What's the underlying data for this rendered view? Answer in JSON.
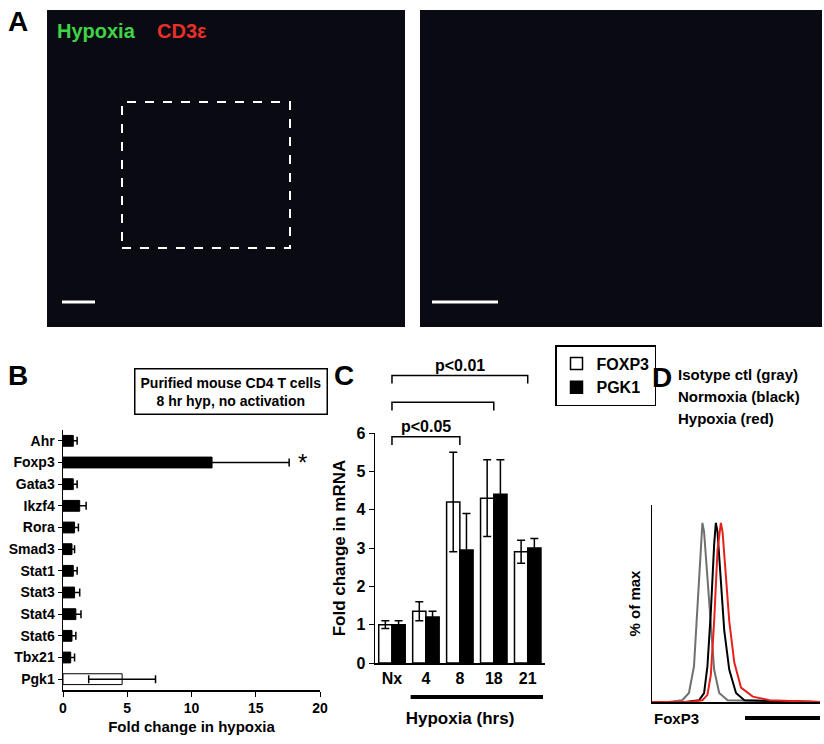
{
  "image_panel": {
    "panel": "A",
    "labels": [
      {
        "text": "Hypoxia",
        "color": "#3fd447"
      },
      {
        "text": "CD3ε",
        "color": "#e8302a"
      }
    ]
  },
  "chart_data": [
    {
      "panel": "B",
      "type": "bar",
      "orientation": "horizontal",
      "title": "Purified mouse CD4 T cells\n8 hr hyp, no activation",
      "categories": [
        "Ahr",
        "Foxp3",
        "Gata3",
        "Ikzf4",
        "Rora",
        "Smad3",
        "Stat1",
        "Stat3",
        "Stat4",
        "Stat6",
        "Tbx21",
        "Pgk1"
      ],
      "values": [
        0.8,
        11.6,
        0.8,
        1.3,
        0.9,
        0.7,
        0.8,
        0.9,
        1.0,
        0.7,
        0.6,
        4.6
      ],
      "errors": [
        0.3,
        6.0,
        0.3,
        0.5,
        0.3,
        0.2,
        0.3,
        0.4,
        0.4,
        0.3,
        0.3,
        2.6
      ],
      "colors": [
        "#000000",
        "#000000",
        "#000000",
        "#000000",
        "#000000",
        "#000000",
        "#000000",
        "#000000",
        "#000000",
        "#000000",
        "#000000",
        "#ffffff"
      ],
      "xlabel": "Fold change in hypoxia",
      "xlim": [
        0,
        20
      ],
      "xticks": [
        0,
        5,
        10,
        15,
        20
      ],
      "annotations": [
        {
          "text": "*",
          "x": 18.6,
          "y": "Foxp3"
        }
      ]
    },
    {
      "panel": "C",
      "type": "bar",
      "categories": [
        "Nx",
        "4",
        "8",
        "18",
        "21"
      ],
      "series": [
        {
          "name": "FOXP3",
          "color": "#ffffff",
          "values": [
            1.0,
            1.35,
            4.2,
            4.3,
            2.9
          ],
          "errors": [
            0.1,
            0.25,
            1.3,
            1.0,
            0.3
          ]
        },
        {
          "name": "PGK1",
          "color": "#000000",
          "values": [
            1.0,
            1.2,
            2.95,
            4.4,
            3.0
          ],
          "errors": [
            0.1,
            0.15,
            0.95,
            0.9,
            0.25
          ]
        }
      ],
      "xlabel": "Hypoxia (hrs)",
      "hypoxia_span": [
        "4",
        "21"
      ],
      "ylabel": "Fold change in mRNA",
      "ylim": [
        0,
        6
      ],
      "yticks": [
        0,
        1,
        2,
        3,
        4,
        5,
        6
      ],
      "legend": "top right",
      "annotations": [
        {
          "text": "p<0.01",
          "from": "Nx",
          "to": "21",
          "y": 7.5
        },
        {
          "from": "Nx",
          "to": "18",
          "y": 6.8
        },
        {
          "text": "p<0.05",
          "from": "Nx",
          "to": "8",
          "y": 5.9
        }
      ]
    },
    {
      "panel": "D",
      "type": "line",
      "xlabel": "FoxP3",
      "ylabel": "% of max",
      "tick_labels": false,
      "xlim": [
        0,
        100
      ],
      "ylim": [
        0,
        110
      ],
      "series": [
        {
          "name": "Isotype ctl (gray)",
          "color": "#707070",
          "x": [
            0,
            10,
            18,
            22,
            25,
            27,
            29,
            30,
            31,
            33,
            35,
            37,
            40,
            45,
            100
          ],
          "values": [
            0,
            0,
            1,
            5,
            20,
            50,
            85,
            100,
            95,
            70,
            40,
            18,
            5,
            1,
            0
          ]
        },
        {
          "name": "Normoxia (black)",
          "color": "#000000",
          "x": [
            0,
            20,
            28,
            31,
            33,
            35,
            37,
            38,
            39,
            41,
            43,
            46,
            50,
            55,
            100
          ],
          "values": [
            0,
            0,
            1,
            5,
            20,
            50,
            88,
            100,
            95,
            70,
            40,
            18,
            5,
            1,
            0
          ]
        },
        {
          "name": "Hypoxia (red)",
          "color": "#e8201c",
          "x": [
            0,
            22,
            30,
            33,
            35,
            37,
            39,
            41,
            42,
            44,
            46,
            49,
            53,
            60,
            70,
            100
          ],
          "values": [
            0,
            0,
            1,
            4,
            15,
            45,
            85,
            100,
            95,
            72,
            45,
            22,
            8,
            3,
            1,
            0
          ]
        }
      ]
    }
  ]
}
